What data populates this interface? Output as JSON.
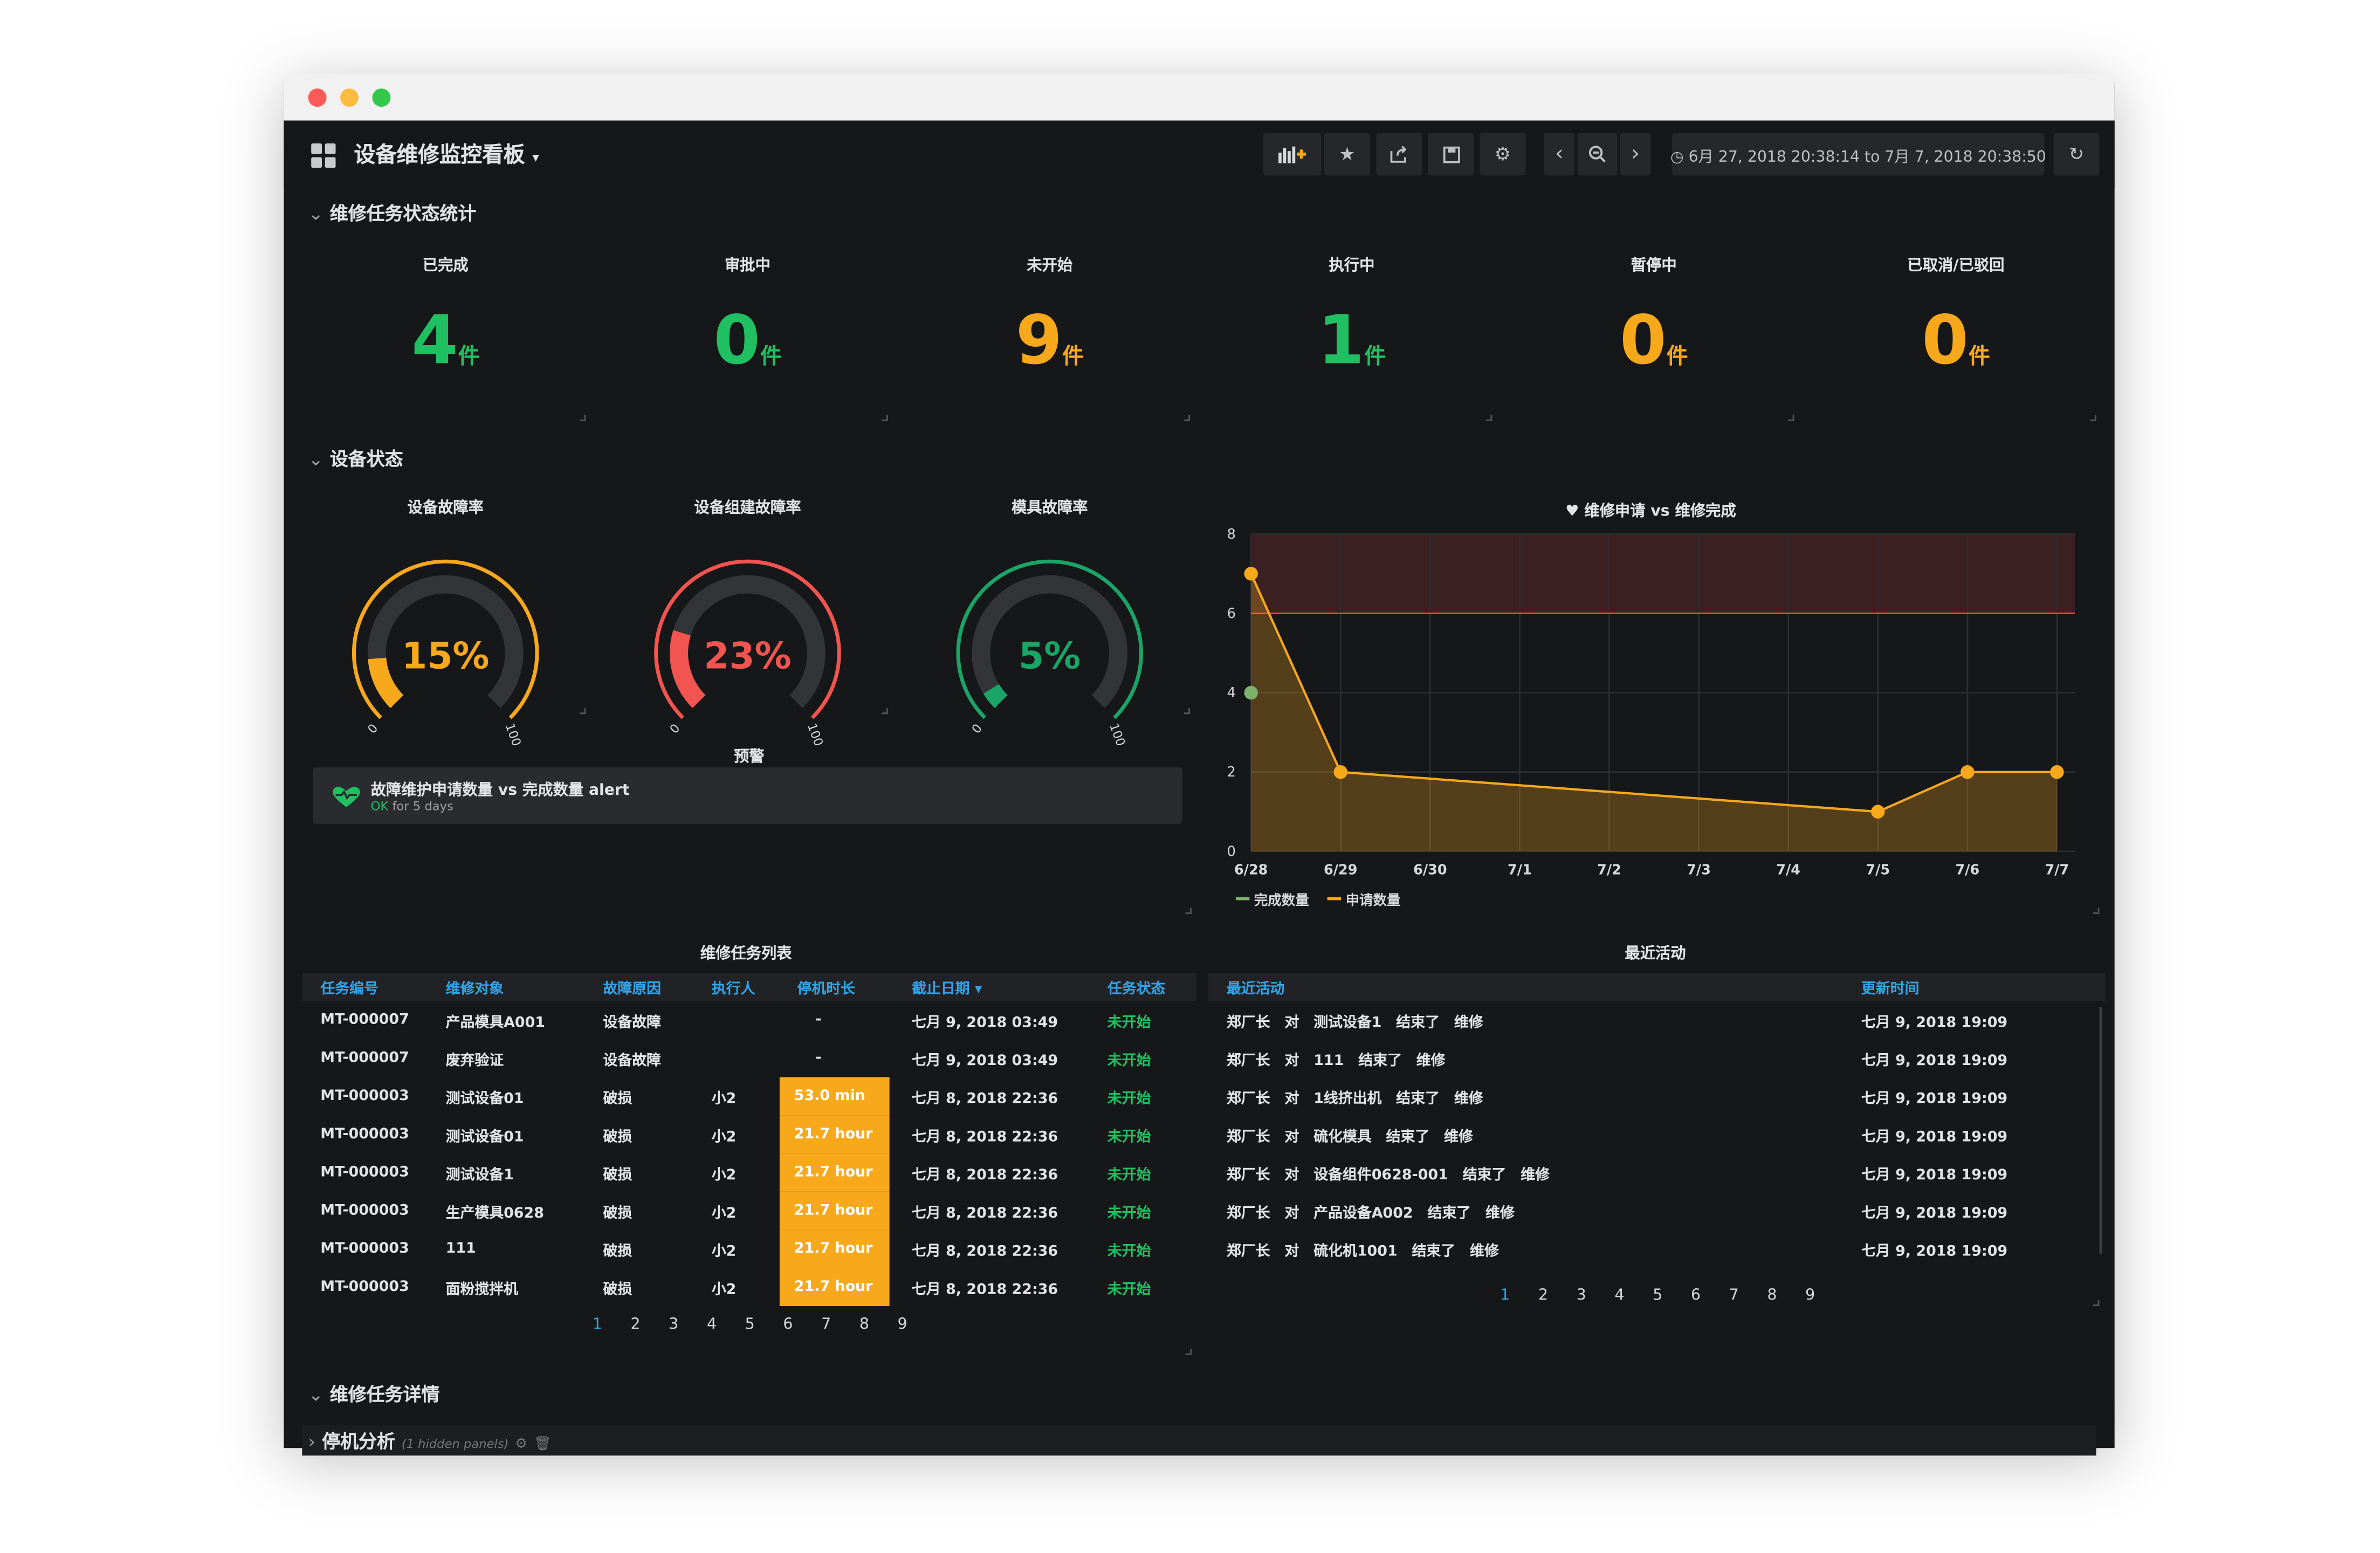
{
  "dashboard": {
    "title": "设备维修监控看板",
    "time_range": "6月 27, 2018 20:38:14 to 7月 7, 2018 20:38:50"
  },
  "toolbar": {
    "icons": [
      "add-panel-icon",
      "star-icon",
      "share-icon",
      "save-icon",
      "gear-icon",
      "chevron-left-icon",
      "zoom-out-icon",
      "chevron-right-icon",
      "clock-icon",
      "refresh-icon"
    ]
  },
  "rows": {
    "status_stats": "维修任务状态统计",
    "equipment_status": "设备状态",
    "task_details": "维修任务详情",
    "downtime": "停机分析",
    "downtime_hidden": "(1 hidden panels)"
  },
  "stats": [
    {
      "label": "已完成",
      "value": "4",
      "unit": "件",
      "color": "#1fbf62"
    },
    {
      "label": "审批中",
      "value": "0",
      "unit": "件",
      "color": "#1fbf62"
    },
    {
      "label": "未开始",
      "value": "9",
      "unit": "件",
      "color": "#f8a91b"
    },
    {
      "label": "执行中",
      "value": "1",
      "unit": "件",
      "color": "#1fbf62"
    },
    {
      "label": "暂停中",
      "value": "0",
      "unit": "件",
      "color": "#f8a91b"
    },
    {
      "label": "已取消/已驳回",
      "value": "0",
      "unit": "件",
      "color": "#f8a91b"
    }
  ],
  "gauges": [
    {
      "label": "设备故障率",
      "value": 15,
      "text": "15%",
      "min": "0",
      "max": "100",
      "color": "#f8a91b"
    },
    {
      "label": "设备组建故障率",
      "value": 23,
      "text": "23%",
      "min": "0",
      "max": "100",
      "color": "#f2544f"
    },
    {
      "label": "模具故障率",
      "value": 5,
      "text": "5%",
      "min": "0",
      "max": "100",
      "color": "#1aa466"
    }
  ],
  "alert": {
    "panel_title": "预警",
    "name": "故障维护申请数量 vs 完成数量 alert",
    "state": "OK",
    "duration": "for 5 days"
  },
  "chart_data": {
    "type": "line",
    "title": "维修申请 vs 维修完成",
    "x": [
      "6/28",
      "6/29",
      "6/30",
      "7/1",
      "7/2",
      "7/3",
      "7/4",
      "7/5",
      "7/6",
      "7/7"
    ],
    "ylim": [
      0,
      8
    ],
    "yticks": [
      "0",
      "2",
      "4",
      "6",
      "8"
    ],
    "threshold": 6,
    "grid": true,
    "legend_position": "bottom-left",
    "series": [
      {
        "name": "完成数量",
        "color": "#7eb26d",
        "points": [
          [
            0,
            4
          ]
        ]
      },
      {
        "name": "申请数量",
        "color": "#f8a91b",
        "points": [
          [
            0,
            7
          ],
          [
            1,
            2
          ],
          [
            7,
            1
          ],
          [
            8,
            2
          ],
          [
            9,
            2
          ]
        ]
      }
    ]
  },
  "task_table": {
    "title": "维修任务列表",
    "columns": [
      "任务编号",
      "维修对象",
      "故障原因",
      "执行人",
      "停机时长",
      "截止日期",
      "任务状态"
    ],
    "rows": [
      [
        "MT-000007",
        "产品模具A001",
        "设备故障",
        "",
        "-",
        "七月 9, 2018 03:49",
        "未开始"
      ],
      [
        "MT-000007",
        "废弃验证",
        "设备故障",
        "",
        "-",
        "七月 9, 2018 03:49",
        "未开始"
      ],
      [
        "MT-000003",
        "测试设备01",
        "破损",
        "小2",
        "53.0 min",
        "七月 8, 2018 22:36",
        "未开始"
      ],
      [
        "MT-000003",
        "测试设备01",
        "破损",
        "小2",
        "21.7 hour",
        "七月 8, 2018 22:36",
        "未开始"
      ],
      [
        "MT-000003",
        "测试设备1",
        "破损",
        "小2",
        "21.7 hour",
        "七月 8, 2018 22:36",
        "未开始"
      ],
      [
        "MT-000003",
        "生产模具0628",
        "破损",
        "小2",
        "21.7 hour",
        "七月 8, 2018 22:36",
        "未开始"
      ],
      [
        "MT-000003",
        "111",
        "破损",
        "小2",
        "21.7 hour",
        "七月 8, 2018 22:36",
        "未开始"
      ],
      [
        "MT-000003",
        "面粉搅拌机",
        "破损",
        "小2",
        "21.7 hour",
        "七月 8, 2018 22:36",
        "未开始"
      ]
    ],
    "pages": [
      "1",
      "2",
      "3",
      "4",
      "5",
      "6",
      "7",
      "8",
      "9"
    ]
  },
  "activity_table": {
    "title": "最近活动",
    "columns": [
      "最近活动",
      "更新时间"
    ],
    "rows": [
      [
        "郑厂长　对　测试设备1　结束了　维修",
        "七月 9, 2018 19:09"
      ],
      [
        "郑厂长　对　111　结束了　维修",
        "七月 9, 2018 19:09"
      ],
      [
        "郑厂长　对　1线挤出机　结束了　维修",
        "七月 9, 2018 19:09"
      ],
      [
        "郑厂长　对　硫化模具　结束了　维修",
        "七月 9, 2018 19:09"
      ],
      [
        "郑厂长　对　设备组件0628-001　结束了　维修",
        "七月 9, 2018 19:09"
      ],
      [
        "郑厂长　对　产品设备A002　结束了　维修",
        "七月 9, 2018 19:09"
      ],
      [
        "郑厂长　对　硫化机1001　结束了　维修",
        "七月 9, 2018 19:09"
      ]
    ],
    "pages": [
      "1",
      "2",
      "3",
      "4",
      "5",
      "6",
      "7",
      "8",
      "9"
    ]
  }
}
